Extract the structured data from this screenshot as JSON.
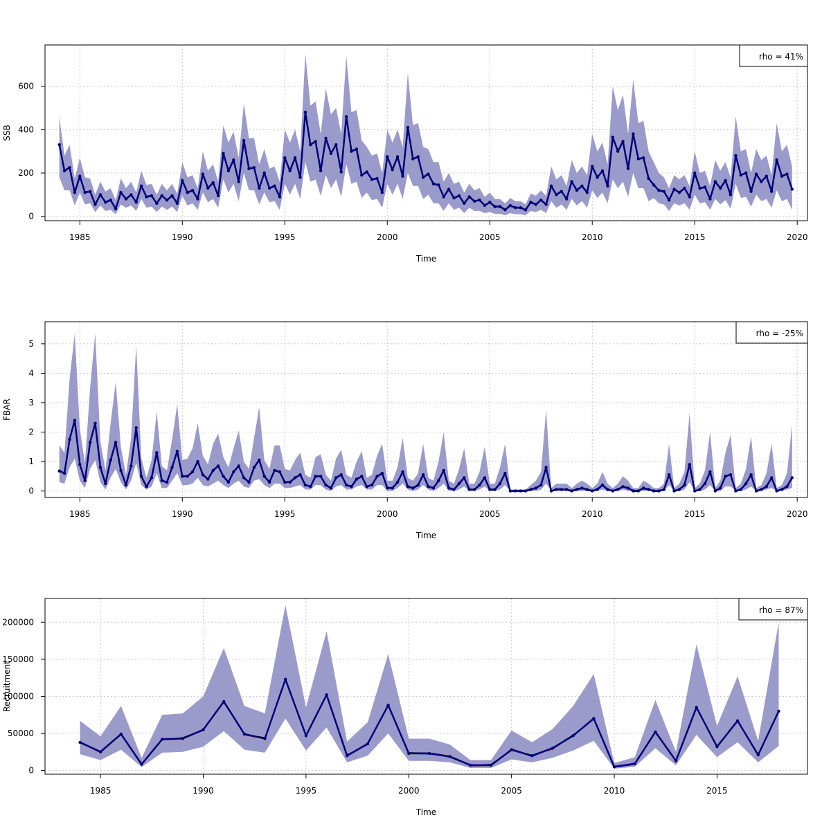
{
  "chart_data": [
    {
      "type": "line",
      "ylabel": "SSB",
      "xlabel": "Time",
      "xlim": [
        1983.3,
        2020.5
      ],
      "ylim": [
        -20,
        790
      ],
      "xticks": [
        1985,
        1990,
        1995,
        2000,
        2005,
        2010,
        2015,
        2020
      ],
      "xtick_labels": [
        "1985",
        "1990",
        "1995",
        "2000",
        "2005",
        "2010",
        "2015",
        "2020"
      ],
      "yticks": [
        0,
        200,
        400,
        600
      ],
      "ytick_labels": [
        "0",
        "200",
        "400",
        "600"
      ],
      "grid": true,
      "legend": "top-right",
      "legend_text": "rho = 41%",
      "step": 0.25,
      "x_start": 1984.0,
      "series": [
        {
          "values": [
            330,
            210,
            225,
            110,
            185,
            110,
            115,
            55,
            100,
            65,
            75,
            35,
            110,
            80,
            100,
            65,
            140,
            90,
            95,
            60,
            95,
            75,
            95,
            60,
            165,
            110,
            120,
            80,
            195,
            130,
            155,
            95,
            290,
            210,
            260,
            160,
            350,
            220,
            225,
            130,
            200,
            130,
            140,
            90,
            270,
            210,
            270,
            180,
            480,
            330,
            345,
            210,
            360,
            290,
            330,
            205,
            460,
            300,
            310,
            190,
            205,
            170,
            175,
            110,
            275,
            215,
            275,
            185,
            410,
            265,
            275,
            180,
            195,
            150,
            145,
            90,
            125,
            85,
            95,
            60,
            90,
            70,
            75,
            50,
            65,
            45,
            45,
            30,
            50,
            40,
            40,
            30,
            65,
            55,
            75,
            55,
            140,
            100,
            115,
            80,
            160,
            120,
            140,
            110,
            230,
            180,
            210,
            140,
            365,
            300,
            345,
            220,
            380,
            265,
            270,
            175,
            145,
            120,
            115,
            75,
            125,
            110,
            130,
            90,
            200,
            130,
            135,
            80,
            160,
            130,
            165,
            100,
            280,
            190,
            200,
            115,
            195,
            160,
            185,
            115,
            260,
            185,
            195,
            125
          ]
        }
      ],
      "band": {
        "upper": [
          460,
          280,
          330,
          175,
          270,
          180,
          175,
          100,
          160,
          115,
          130,
          75,
          175,
          130,
          160,
          110,
          210,
          145,
          150,
          100,
          150,
          120,
          150,
          105,
          250,
          180,
          190,
          130,
          300,
          210,
          240,
          160,
          420,
          340,
          390,
          270,
          520,
          360,
          360,
          240,
          310,
          220,
          230,
          160,
          400,
          340,
          400,
          300,
          750,
          510,
          530,
          380,
          590,
          470,
          500,
          380,
          740,
          480,
          490,
          350,
          320,
          280,
          290,
          200,
          400,
          340,
          400,
          320,
          660,
          420,
          430,
          320,
          310,
          250,
          250,
          160,
          200,
          150,
          160,
          110,
          150,
          120,
          130,
          90,
          110,
          80,
          80,
          60,
          85,
          70,
          70,
          55,
          105,
          95,
          120,
          95,
          230,
          170,
          190,
          140,
          260,
          200,
          230,
          190,
          380,
          300,
          340,
          240,
          600,
          490,
          560,
          380,
          630,
          430,
          440,
          300,
          250,
          200,
          180,
          130,
          190,
          170,
          190,
          140,
          300,
          200,
          210,
          140,
          260,
          210,
          250,
          180,
          460,
          300,
          310,
          200,
          310,
          260,
          280,
          190,
          430,
          300,
          330,
          230
        ],
        "lower": [
          180,
          120,
          120,
          50,
          110,
          55,
          60,
          20,
          50,
          25,
          30,
          10,
          55,
          40,
          50,
          25,
          80,
          40,
          45,
          20,
          45,
          30,
          45,
          20,
          95,
          50,
          60,
          30,
          110,
          65,
          80,
          40,
          170,
          110,
          150,
          70,
          200,
          120,
          120,
          55,
          110,
          65,
          70,
          30,
          150,
          100,
          150,
          80,
          250,
          160,
          170,
          95,
          190,
          130,
          170,
          90,
          240,
          150,
          160,
          85,
          110,
          75,
          80,
          40,
          150,
          100,
          150,
          80,
          200,
          140,
          140,
          80,
          100,
          60,
          60,
          25,
          60,
          30,
          40,
          15,
          40,
          25,
          25,
          15,
          20,
          12,
          12,
          5,
          15,
          10,
          10,
          5,
          25,
          20,
          30,
          15,
          70,
          40,
          55,
          30,
          80,
          50,
          70,
          40,
          120,
          85,
          110,
          60,
          170,
          130,
          160,
          90,
          200,
          130,
          130,
          70,
          85,
          60,
          55,
          25,
          60,
          50,
          60,
          30,
          100,
          60,
          65,
          30,
          80,
          55,
          75,
          35,
          150,
          85,
          90,
          45,
          100,
          70,
          80,
          40,
          120,
          70,
          80,
          30
        ]
      }
    },
    {
      "type": "line",
      "ylabel": "FBAR",
      "xlabel": "Time",
      "xlim": [
        1983.3,
        2020.5
      ],
      "ylim": [
        -0.22,
        5.75
      ],
      "xticks": [
        1985,
        1990,
        1995,
        2000,
        2005,
        2010,
        2015,
        2020
      ],
      "xtick_labels": [
        "1985",
        "1990",
        "1995",
        "2000",
        "2005",
        "2010",
        "2015",
        "2020"
      ],
      "yticks": [
        0,
        1,
        2,
        3,
        4,
        5
      ],
      "ytick_labels": [
        "0",
        "1",
        "2",
        "3",
        "4",
        "5"
      ],
      "grid": true,
      "legend": "top-right",
      "legend_text": "rho = -25%",
      "step": 0.25,
      "x_start": 1984.0,
      "series": [
        {
          "values": [
            0.68,
            0.6,
            1.75,
            2.4,
            0.9,
            0.35,
            1.65,
            2.3,
            0.8,
            0.25,
            1.05,
            1.65,
            0.7,
            0.2,
            0.85,
            2.15,
            0.5,
            0.15,
            0.45,
            1.3,
            0.35,
            0.3,
            0.8,
            1.35,
            0.5,
            0.5,
            0.65,
            1.0,
            0.55,
            0.4,
            0.7,
            0.85,
            0.5,
            0.3,
            0.65,
            0.85,
            0.45,
            0.3,
            0.8,
            1.05,
            0.5,
            0.3,
            0.7,
            0.65,
            0.3,
            0.3,
            0.45,
            0.55,
            0.2,
            0.15,
            0.5,
            0.5,
            0.2,
            0.1,
            0.45,
            0.55,
            0.2,
            0.15,
            0.4,
            0.5,
            0.15,
            0.2,
            0.5,
            0.6,
            0.1,
            0.1,
            0.3,
            0.65,
            0.15,
            0.1,
            0.2,
            0.55,
            0.15,
            0.1,
            0.35,
            0.7,
            0.1,
            0.05,
            0.25,
            0.45,
            0.05,
            0.05,
            0.2,
            0.45,
            0.05,
            0.05,
            0.25,
            0.6,
            0.0,
            0.0,
            0.0,
            0.0,
            0.05,
            0.1,
            0.2,
            0.8,
            0.0,
            0.05,
            0.05,
            0.05,
            0.0,
            0.05,
            0.1,
            0.05,
            0.0,
            0.05,
            0.2,
            0.05,
            0.0,
            0.05,
            0.15,
            0.1,
            0.0,
            0.0,
            0.1,
            0.05,
            0.0,
            0.0,
            0.05,
            0.55,
            0.0,
            0.05,
            0.2,
            0.9,
            0.0,
            0.05,
            0.25,
            0.65,
            0.0,
            0.1,
            0.5,
            0.55,
            0.0,
            0.05,
            0.25,
            0.55,
            0.0,
            0.05,
            0.15,
            0.45,
            0.0,
            0.05,
            0.15,
            0.45
          ]
        }
      ],
      "band": {
        "upper": [
          1.55,
          1.3,
          3.8,
          5.35,
          2.1,
          0.95,
          3.5,
          5.35,
          1.7,
          0.7,
          2.3,
          3.7,
          1.5,
          0.55,
          1.8,
          4.95,
          1.1,
          0.45,
          1.05,
          2.7,
          0.85,
          0.7,
          1.75,
          2.95,
          1.05,
          1.1,
          1.45,
          2.3,
          1.2,
          0.9,
          1.6,
          1.95,
          1.15,
          0.8,
          1.45,
          2.05,
          1.0,
          0.75,
          1.8,
          2.85,
          1.05,
          0.75,
          1.55,
          1.55,
          0.75,
          0.7,
          1.05,
          1.3,
          0.55,
          0.45,
          1.15,
          1.25,
          0.55,
          0.35,
          1.1,
          1.4,
          0.55,
          0.45,
          1.0,
          1.35,
          0.45,
          0.55,
          1.2,
          1.6,
          0.35,
          0.35,
          0.8,
          1.8,
          0.45,
          0.35,
          0.6,
          1.6,
          0.45,
          0.35,
          1.0,
          2.0,
          0.35,
          0.25,
          0.75,
          1.45,
          0.25,
          0.25,
          0.65,
          1.5,
          0.25,
          0.25,
          0.8,
          1.6,
          0.05,
          0.05,
          0.05,
          0.05,
          0.2,
          0.35,
          0.65,
          2.75,
          0.1,
          0.25,
          0.25,
          0.25,
          0.1,
          0.25,
          0.35,
          0.25,
          0.1,
          0.25,
          0.65,
          0.25,
          0.1,
          0.25,
          0.5,
          0.35,
          0.1,
          0.1,
          0.35,
          0.25,
          0.1,
          0.1,
          0.25,
          1.6,
          0.1,
          0.25,
          0.65,
          2.65,
          0.1,
          0.25,
          0.7,
          2.0,
          0.1,
          0.35,
          1.3,
          1.9,
          0.1,
          0.25,
          0.75,
          1.85,
          0.1,
          0.2,
          0.6,
          1.6,
          0.1,
          0.2,
          0.6,
          2.25
        ],
        "lower": [
          0.3,
          0.25,
          0.8,
          1.1,
          0.35,
          0.1,
          0.75,
          1.05,
          0.3,
          0.05,
          0.45,
          0.75,
          0.3,
          0.05,
          0.35,
          0.95,
          0.2,
          0.05,
          0.15,
          0.6,
          0.1,
          0.1,
          0.35,
          0.6,
          0.2,
          0.2,
          0.25,
          0.45,
          0.2,
          0.15,
          0.25,
          0.35,
          0.2,
          0.1,
          0.25,
          0.35,
          0.15,
          0.1,
          0.35,
          0.4,
          0.2,
          0.1,
          0.25,
          0.25,
          0.1,
          0.1,
          0.15,
          0.2,
          0.05,
          0.05,
          0.2,
          0.2,
          0.05,
          0.0,
          0.15,
          0.2,
          0.05,
          0.05,
          0.15,
          0.2,
          0.05,
          0.05,
          0.2,
          0.2,
          0.0,
          0.0,
          0.1,
          0.25,
          0.05,
          0.0,
          0.05,
          0.2,
          0.05,
          0.0,
          0.1,
          0.25,
          0.0,
          0.0,
          0.05,
          0.15,
          0.0,
          0.0,
          0.05,
          0.15,
          0.0,
          0.0,
          0.05,
          0.2,
          0.0,
          0.0,
          0.0,
          0.0,
          0.0,
          0.0,
          0.05,
          0.25,
          0.0,
          0.0,
          0.0,
          0.0,
          0.0,
          0.0,
          0.0,
          0.0,
          0.0,
          0.0,
          0.05,
          0.0,
          0.0,
          0.0,
          0.05,
          0.0,
          0.0,
          0.0,
          0.0,
          0.0,
          0.0,
          0.0,
          0.0,
          0.2,
          0.0,
          0.0,
          0.05,
          0.3,
          0.0,
          0.0,
          0.05,
          0.2,
          0.0,
          0.0,
          0.15,
          0.15,
          0.0,
          0.0,
          0.05,
          0.15,
          0.0,
          0.0,
          0.05,
          0.1,
          0.0,
          0.0,
          0.05,
          0.1
        ]
      }
    },
    {
      "type": "line",
      "ylabel": "Recruitment",
      "xlabel": "Time",
      "xlim": [
        1982.3,
        2019.4
      ],
      "ylim": [
        -5000,
        232000
      ],
      "xticks": [
        1985,
        1990,
        1995,
        2000,
        2005,
        2010,
        2015
      ],
      "xtick_labels": [
        "1985",
        "1990",
        "1995",
        "2000",
        "2005",
        "2010",
        "2015"
      ],
      "yticks": [
        0,
        50000,
        100000,
        150000,
        200000
      ],
      "ytick_labels": [
        "0",
        "50000",
        "100000",
        "150000",
        "200000"
      ],
      "grid": true,
      "legend": "top-right",
      "legend_text": "rho = 87%",
      "step": 1,
      "x_start": 1984,
      "series": [
        {
          "values": [
            38000,
            25000,
            49000,
            8500,
            42000,
            43000,
            55000,
            93000,
            49000,
            43000,
            123000,
            47000,
            102000,
            20000,
            36000,
            88000,
            23000,
            23000,
            19000,
            7000,
            7000,
            28000,
            20000,
            30000,
            47000,
            70000,
            5000,
            9000,
            52000,
            13000,
            85000,
            32000,
            67000,
            21000,
            80000
          ]
        }
      ],
      "band": {
        "upper": [
          67000,
          46000,
          87000,
          17000,
          75000,
          77000,
          100000,
          165000,
          87000,
          77000,
          223000,
          85000,
          188000,
          39000,
          65000,
          157000,
          43000,
          43000,
          35000,
          14000,
          14000,
          54000,
          38000,
          56000,
          87000,
          130000,
          10000,
          18000,
          95000,
          25000,
          170000,
          60000,
          127000,
          40000,
          200000
        ],
        "lower": [
          22000,
          14000,
          28000,
          4500,
          24000,
          25000,
          32000,
          53000,
          28000,
          24000,
          70000,
          27000,
          58000,
          11000,
          20000,
          50000,
          13000,
          13000,
          11000,
          3500,
          3500,
          15000,
          11000,
          17000,
          27000,
          40000,
          2500,
          5000,
          30000,
          7000,
          48000,
          18000,
          38000,
          11000,
          33000
        ]
      }
    }
  ]
}
